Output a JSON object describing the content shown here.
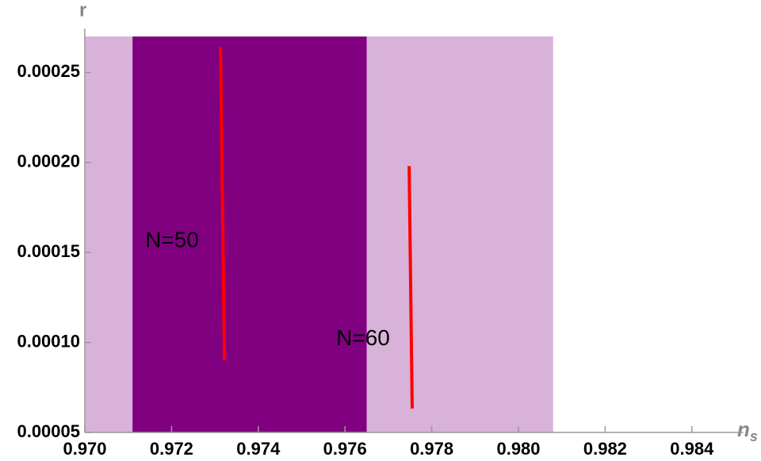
{
  "chart_data": {
    "type": "line",
    "x_label": "n",
    "x_label_sub": "s",
    "y_label": "r",
    "xlim": [
      0.97,
      0.985
    ],
    "ylim": [
      5e-05,
      0.00027
    ],
    "xticks": [
      {
        "value": 0.97,
        "label": "0.970"
      },
      {
        "value": 0.972,
        "label": "0.972"
      },
      {
        "value": 0.974,
        "label": "0.974"
      },
      {
        "value": 0.976,
        "label": "0.976"
      },
      {
        "value": 0.978,
        "label": "0.978"
      },
      {
        "value": 0.98,
        "label": "0.980"
      },
      {
        "value": 0.982,
        "label": "0.982"
      },
      {
        "value": 0.984,
        "label": "0.984"
      }
    ],
    "yticks": [
      {
        "value": 5e-05,
        "label": "0.00005"
      },
      {
        "value": 0.0001,
        "label": "0.00010"
      },
      {
        "value": 0.00015,
        "label": "0.00015"
      },
      {
        "value": 0.0002,
        "label": "0.00020"
      },
      {
        "value": 0.00025,
        "label": "0.00025"
      }
    ],
    "regions": [
      {
        "x": [
          0.97,
          0.9808
        ],
        "color": "#d8b2d8"
      },
      {
        "x": [
          0.9711,
          0.9765
        ],
        "color": "#800080"
      }
    ],
    "series": [
      {
        "name": "N=50",
        "color": "#ff0000",
        "x": [
          0.97313,
          0.97322
        ],
        "values": [
          0.000264,
          9e-05
        ]
      },
      {
        "name": "N=60",
        "color": "#ff0000",
        "x": [
          0.97748,
          0.97755
        ],
        "values": [
          0.000198,
          6.33e-05
        ]
      }
    ]
  }
}
